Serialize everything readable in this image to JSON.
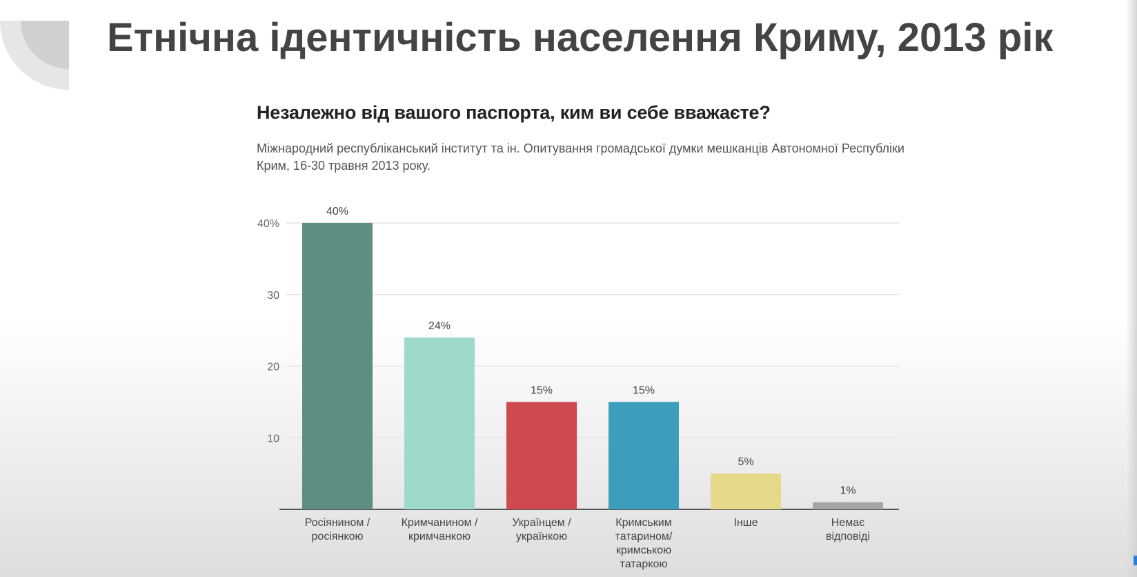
{
  "slide": {
    "title": "Етнічна ідентичність населення Криму, 2013 рік"
  },
  "chart_data": {
    "type": "bar",
    "title": "Незалежно від вашого паспорта, ким ви себе вважаєте?",
    "subtitle": "Міжнародний республіканський інститут та ін. Опитування громадської думки мешканців Автономної Республіки Крим, 16-30 травня 2013 року.",
    "categories": [
      [
        "Росіянином /",
        "росіянкою"
      ],
      [
        "Кримчанином /",
        "кримчанкою"
      ],
      [
        "Українцем /",
        "українкою"
      ],
      [
        "Кримським",
        "татарином/",
        "кримською",
        "татаркою"
      ],
      [
        "Інше"
      ],
      [
        "Немає",
        "відповіді"
      ]
    ],
    "values": [
      40,
      24,
      15,
      15,
      5,
      1
    ],
    "value_labels": [
      "40%",
      "24%",
      "15%",
      "15%",
      "5%",
      "1%"
    ],
    "colors": [
      "#5e8d84",
      "#9fd9cb",
      "#cf4950",
      "#3d9dbd",
      "#e5d889",
      "#a5a5a5"
    ],
    "yticks": [
      {
        "value": 40,
        "label": "40%"
      },
      {
        "value": 30,
        "label": "30"
      },
      {
        "value": 20,
        "label": "20"
      },
      {
        "value": 10,
        "label": "10"
      }
    ],
    "ylim": [
      0,
      40
    ],
    "grid": true,
    "legend": "none"
  }
}
